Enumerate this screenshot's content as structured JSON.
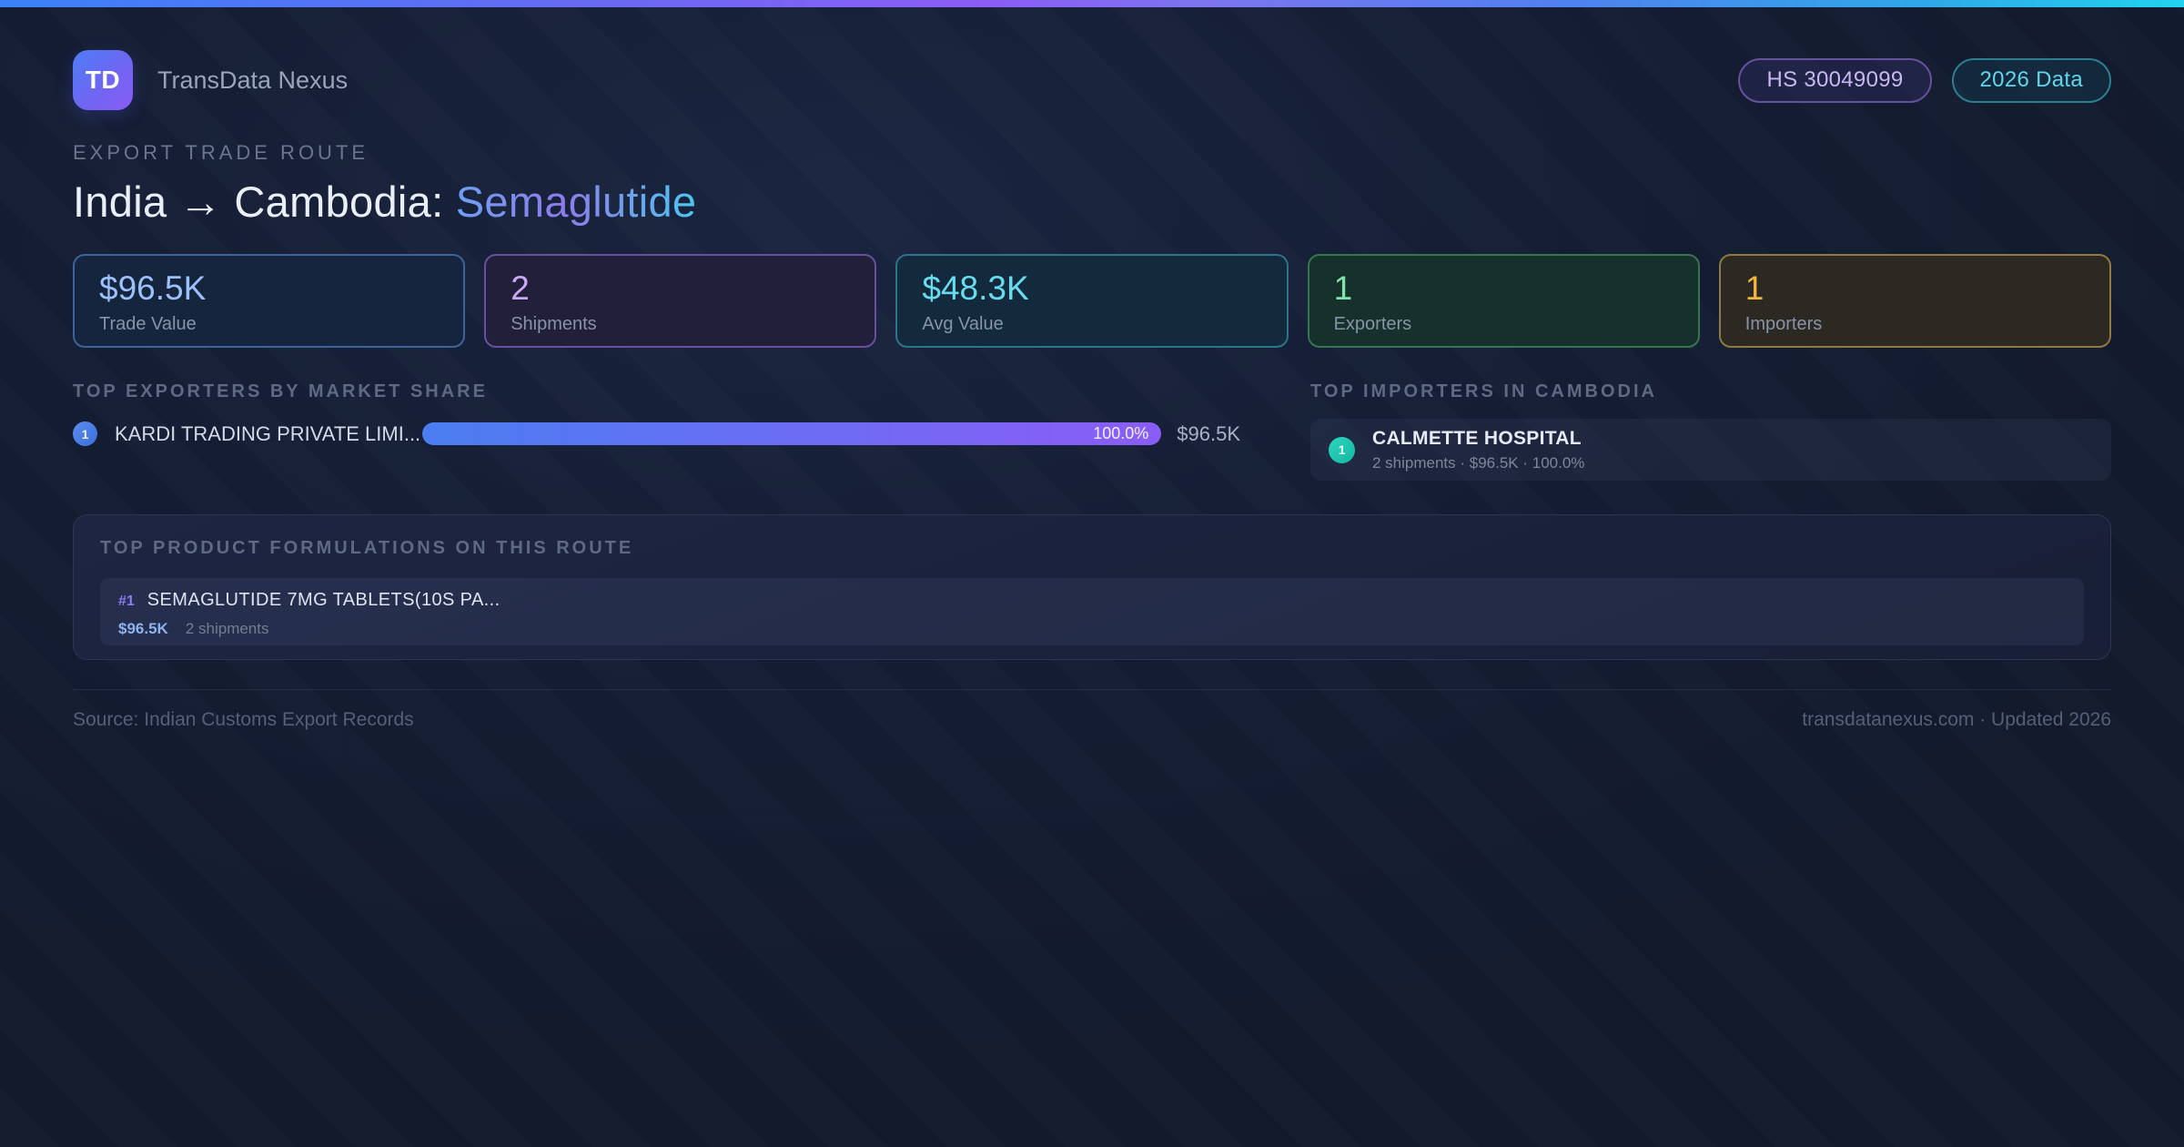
{
  "brand": {
    "logo": "TD",
    "name": "TransData Nexus"
  },
  "badges": {
    "hs_code": "HS 30049099",
    "year": "2026 Data"
  },
  "header": {
    "eyebrow": "EXPORT TRADE ROUTE",
    "title_main": "India → Cambodia: ",
    "title_highlight": "Semaglutide"
  },
  "stats": [
    {
      "value": "$96.5K",
      "label": "Trade Value",
      "accent": "#9cc0f9",
      "border": "#3d6496",
      "bg": "#16253e"
    },
    {
      "value": "2",
      "label": "Shipments",
      "accent": "#c9a9f5",
      "border": "#67519f",
      "bg": "#211f3a"
    },
    {
      "value": "$48.3K",
      "label": "Avg Value",
      "accent": "#68dcef",
      "border": "#2d7389",
      "bg": "#132a3c"
    },
    {
      "value": "1",
      "label": "Exporters",
      "accent": "#80e3ab",
      "border": "#37754f",
      "bg": "#16312c"
    },
    {
      "value": "1",
      "label": "Importers",
      "accent": "#f3b73e",
      "border": "#8f7a41",
      "bg": "#2b2921"
    }
  ],
  "exporters": {
    "section_title": "TOP EXPORTERS BY MARKET SHARE",
    "items": [
      {
        "rank": "1",
        "name": "KARDI TRADING PRIVATE LIMI...",
        "share_pct": 100,
        "share_label": "100.0%",
        "value": "$96.5K",
        "bar_gradient": "linear-gradient(90deg, #4a7df0 0%, #8b5cf6 100%)"
      }
    ]
  },
  "importers": {
    "section_title": "TOP IMPORTERS IN CAMBODIA",
    "items": [
      {
        "rank": "1",
        "name": "CALMETTE HOSPITAL",
        "meta": "2 shipments · $96.5K · 100.0%"
      }
    ]
  },
  "products": {
    "section_title": "TOP PRODUCT FORMULATIONS ON THIS ROUTE",
    "items": [
      {
        "rank": "#1",
        "name": "SEMAGLUTIDE 7MG TABLETS(10S PA...",
        "value": "$96.5K",
        "shipments": "2 shipments"
      }
    ]
  },
  "footer": {
    "source": "Source: Indian Customs Export Records",
    "site_info": "transdatanexus.com · Updated 2026"
  }
}
